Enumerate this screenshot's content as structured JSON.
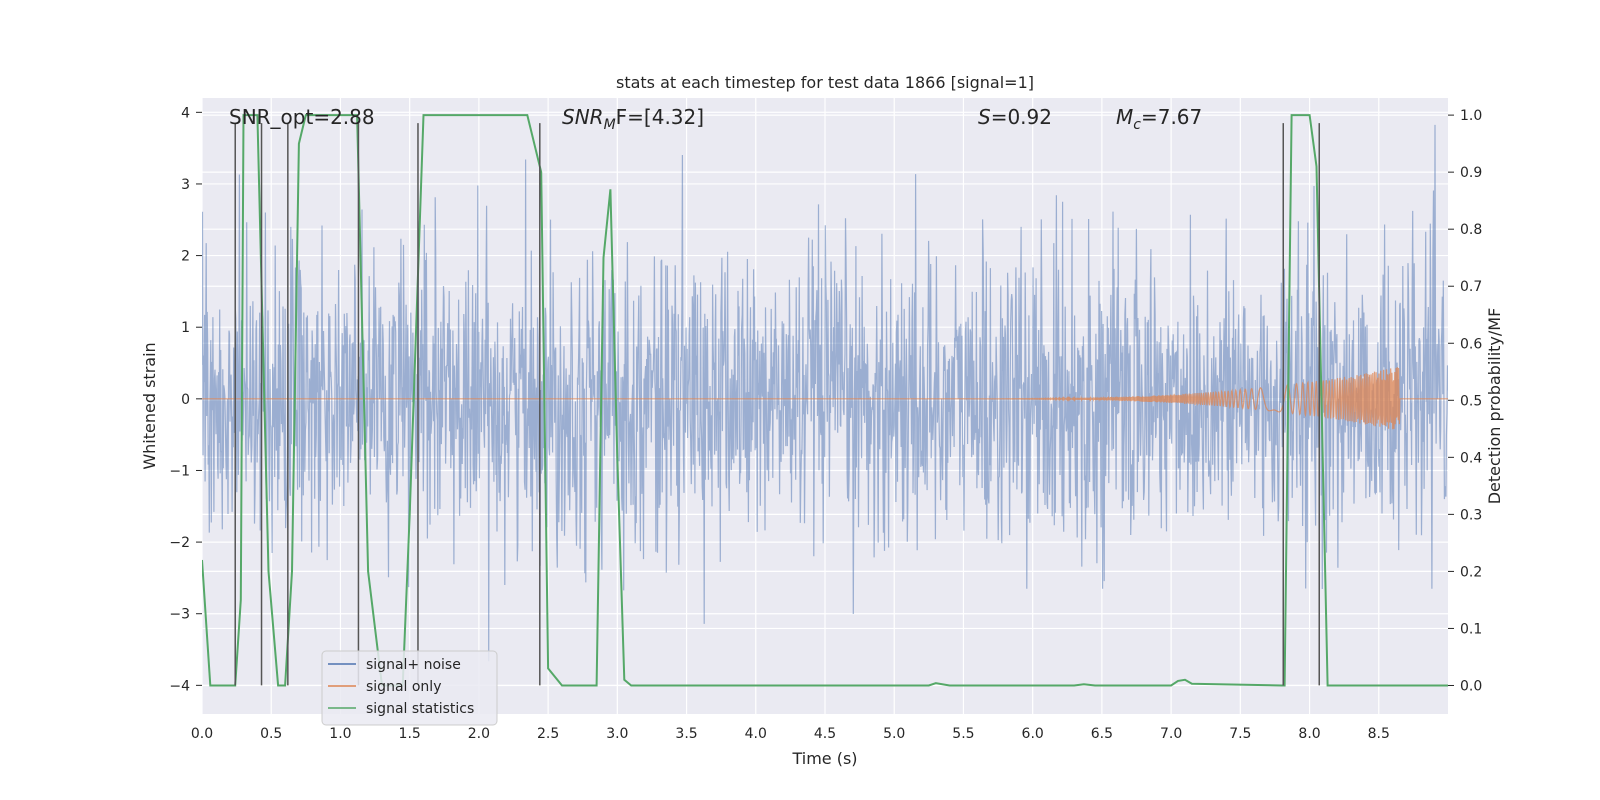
{
  "chart_data": {
    "type": "line",
    "title": "stats at each timestep for test data 1866 [signal=1]",
    "xlabel": "Time (s)",
    "ylabel": "Whitened strain",
    "ylabel_right": "Detection probability/MF",
    "xlim": [
      0.0,
      9.0
    ],
    "ylim": [
      -4.4,
      4.2
    ],
    "ylim_right": [
      -0.05,
      1.03
    ],
    "xticks": [
      "0.0",
      "0.5",
      "1.0",
      "1.5",
      "2.0",
      "2.5",
      "3.0",
      "3.5",
      "4.0",
      "4.5",
      "5.0",
      "5.5",
      "6.0",
      "6.5",
      "7.0",
      "7.5",
      "8.0",
      "8.5"
    ],
    "yticks": [
      "4",
      "3",
      "2",
      "1",
      "0",
      "−1",
      "−2",
      "−3",
      "−4"
    ],
    "yticks_right": [
      "1.0",
      "0.9",
      "0.8",
      "0.7",
      "0.6",
      "0.5",
      "0.4",
      "0.3",
      "0.2",
      "0.1",
      "0.0"
    ],
    "annotations": {
      "snr_opt": "SNR_opt=2.88",
      "snr_mf_base": "SNR",
      "snr_mf_sub": "M",
      "snr_mf_rest": "F=[4.32]",
      "s_base": "S",
      "s_rest": "=0.92",
      "mc_base": "M",
      "mc_sub": "c",
      "mc_rest": "=7.67"
    },
    "legend": {
      "position": "lower-left",
      "entries": [
        "signal+ noise",
        "signal only",
        "signal statistics"
      ]
    },
    "colors": {
      "noise": "#4c72b0",
      "signal": "#dd8452",
      "stats": "#55a868",
      "vlines": "#555555",
      "background": "#eaeaf2",
      "grid": "#ffffff"
    },
    "noise_amplitude_sigma": 1.0,
    "signal_chirp": {
      "start": 5.3,
      "end": 8.65,
      "peak_amplitude": 0.45
    },
    "vertical_lines_x": [
      0.24,
      0.43,
      0.62,
      1.13,
      1.56,
      2.44,
      7.81,
      8.07
    ],
    "series": [
      {
        "name": "signal statistics",
        "axis": "right",
        "x": [
          0.0,
          0.06,
          0.1,
          0.24,
          0.28,
          0.3,
          0.4,
          0.48,
          0.55,
          0.6,
          0.65,
          0.7,
          0.75,
          0.8,
          1.0,
          1.12,
          1.2,
          1.3,
          1.35,
          1.45,
          1.5,
          1.6,
          2.35,
          2.45,
          2.5,
          2.6,
          2.85,
          2.9,
          2.95,
          3.0,
          3.05,
          3.1,
          5.25,
          5.3,
          5.4,
          6.3,
          6.37,
          6.45,
          7.0,
          7.05,
          7.1,
          7.15,
          7.8,
          7.82,
          7.87,
          8.0,
          8.05,
          8.13,
          8.5,
          9.0
        ],
        "values": [
          0.22,
          0.0,
          0.0,
          0.0,
          0.15,
          1.0,
          1.0,
          0.2,
          0.0,
          0.0,
          0.2,
          0.95,
          1.0,
          1.0,
          1.0,
          1.0,
          0.2,
          0.0,
          0.0,
          0.0,
          0.3,
          1.0,
          1.0,
          0.9,
          0.03,
          0.0,
          0.0,
          0.75,
          0.87,
          0.4,
          0.01,
          0.0,
          0.0,
          0.004,
          0.0,
          0.0,
          0.002,
          0.0,
          0.0,
          0.008,
          0.01,
          0.003,
          0.0,
          0.0,
          1.0,
          1.0,
          0.91,
          0.0,
          0.0,
          0.0
        ]
      }
    ]
  }
}
